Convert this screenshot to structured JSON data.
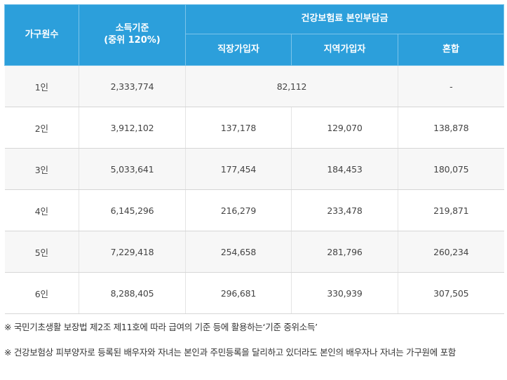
{
  "header": {
    "household": "가구원수",
    "income_line1": "소득기준",
    "income_line2": "(중위 120%)",
    "premium": "건강보험료 본인부담금",
    "workplace": "직장가입자",
    "regional": "지역가입자",
    "mixed": "혼합"
  },
  "rows": [
    {
      "size": "1인",
      "income": "2,333,774",
      "merged": "82,112",
      "mixed": "-"
    },
    {
      "size": "2인",
      "income": "3,912,102",
      "workplace": "137,178",
      "regional": "129,070",
      "mixed": "138,878"
    },
    {
      "size": "3인",
      "income": "5,033,641",
      "workplace": "177,454",
      "regional": "184,453",
      "mixed": "180,075"
    },
    {
      "size": "4인",
      "income": "6,145,296",
      "workplace": "216,279",
      "regional": "233,478",
      "mixed": "219,871"
    },
    {
      "size": "5인",
      "income": "7,229,418",
      "workplace": "254,658",
      "regional": "281,796",
      "mixed": "260,234"
    },
    {
      "size": "6인",
      "income": "8,288,405",
      "workplace": "296,681",
      "regional": "330,939",
      "mixed": "307,505"
    }
  ],
  "notes": {
    "note1": "※ 국민기초생활 보장법 제2조 제11호에 따라 급여의 기준 등에 활용하는‘기준 중위소득’",
    "note2": "※ 건강보험상 피부양자로 등록된 배우자와 자녀는 본인과 주민등록을 달리하고 있더라도 본인의 배우자나 자녀는 가구원에 포함"
  },
  "colors": {
    "header_bg": "#2c9fdb",
    "header_text": "#ffffff",
    "stripe": "#f7f7f7"
  }
}
